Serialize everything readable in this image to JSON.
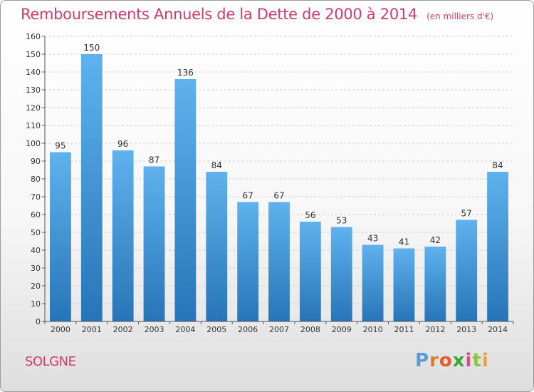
{
  "header": {
    "title": "Remboursements Annuels de la Dette de 2000 à 2014",
    "subtitle": "(en milliers d'€)"
  },
  "footer": {
    "commune": "SOLGNE",
    "logo": {
      "letters": [
        "P",
        "r",
        "o",
        "x",
        "i",
        "t",
        "i"
      ],
      "colors": [
        "#5a9bd8",
        "#e07a2e",
        "#e85a2a",
        "#3aa53a",
        "#d84a8a",
        "#8cc63f",
        "#f0a030"
      ]
    }
  },
  "chart_data": {
    "type": "bar",
    "categories": [
      "2000",
      "2001",
      "2002",
      "2003",
      "2004",
      "2005",
      "2006",
      "2007",
      "2008",
      "2009",
      "2010",
      "2011",
      "2012",
      "2013",
      "2014"
    ],
    "values": [
      95,
      150,
      96,
      87,
      136,
      84,
      67,
      67,
      56,
      53,
      43,
      41,
      42,
      57,
      84
    ],
    "data_labels": [
      "95",
      "150",
      "96",
      "87",
      "136",
      "84",
      "67",
      "67",
      "56",
      "53",
      "43",
      "41",
      "42",
      "57",
      "84"
    ],
    "yticks": [
      "0",
      "10",
      "20",
      "30",
      "40",
      "50",
      "60",
      "70",
      "80",
      "90",
      "100",
      "110",
      "120",
      "130",
      "140",
      "150",
      "160"
    ],
    "ylim": [
      0,
      160
    ],
    "grid": true,
    "bar_color": "#4a9fe0",
    "bar_color_dark": "#2b78c0",
    "title": "Remboursements Annuels de la Dette de 2000 à 2014",
    "xlabel": "",
    "ylabel": ""
  }
}
